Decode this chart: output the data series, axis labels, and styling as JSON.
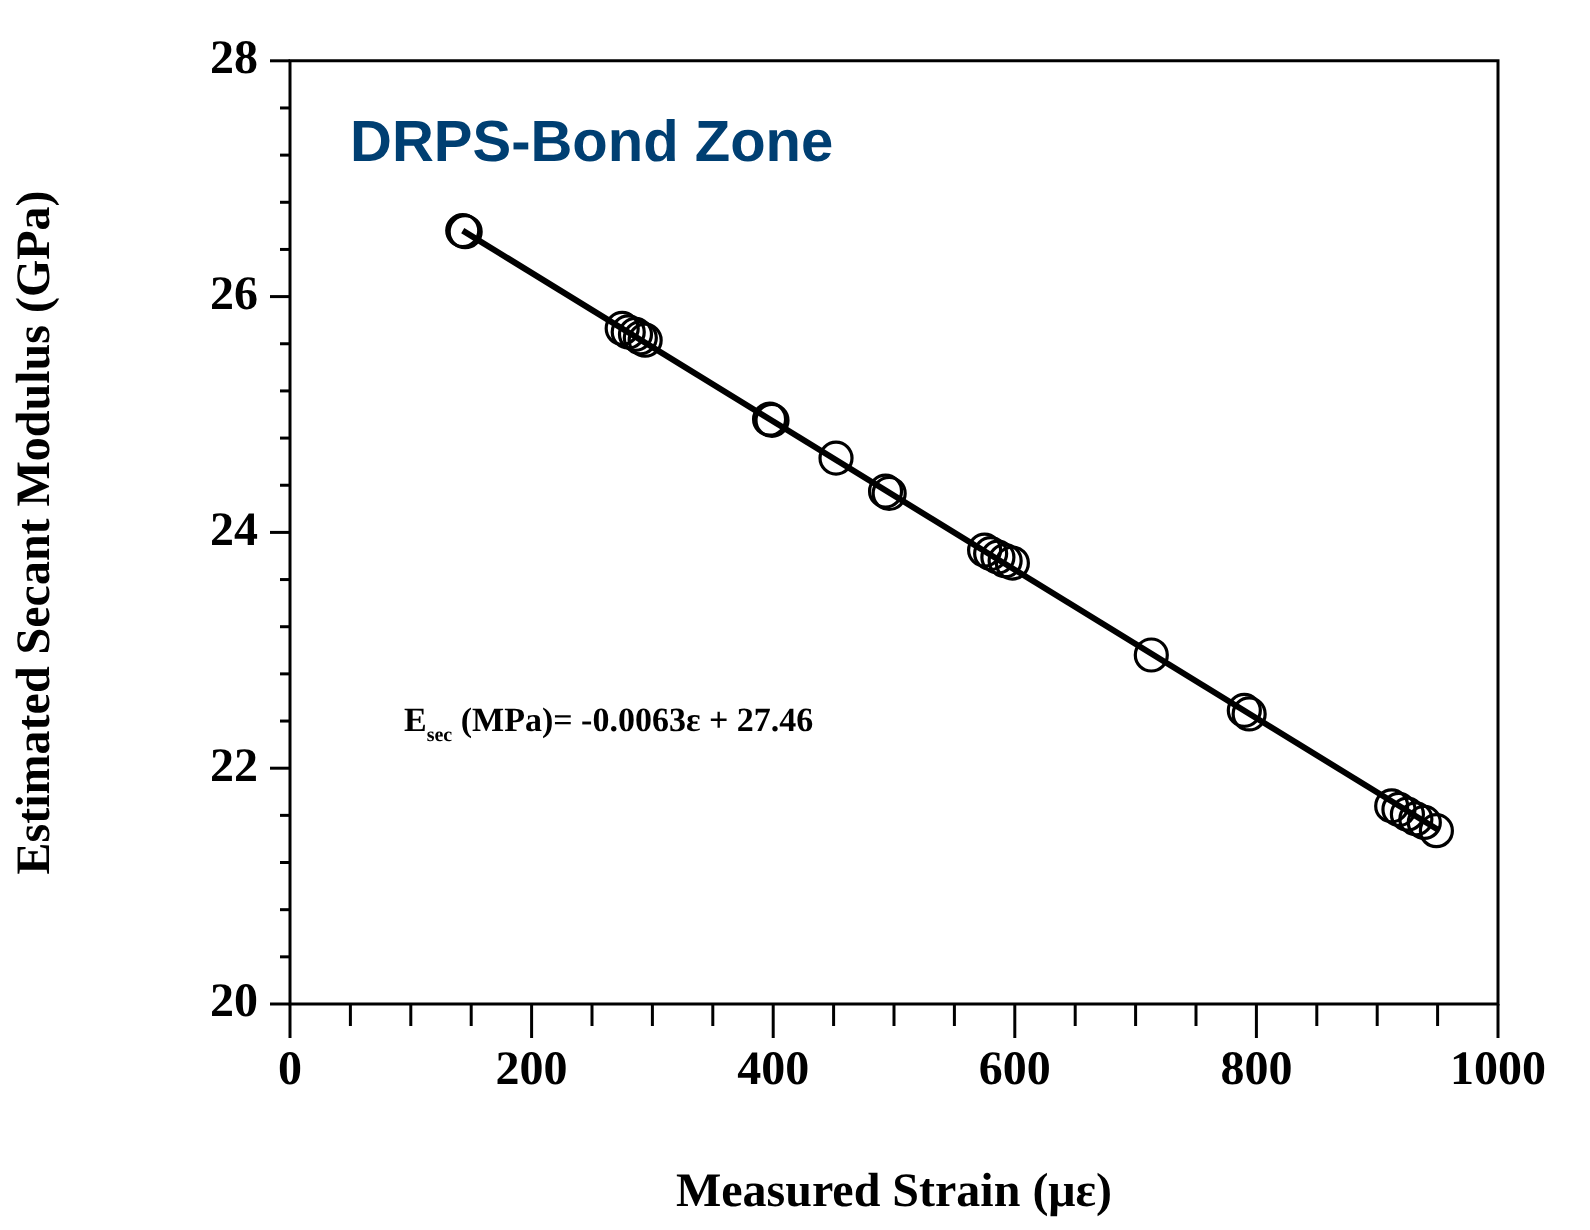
{
  "chart_data": {
    "type": "scatter",
    "title": "DRPS-Bond Zone",
    "xlabel": "Measured Strain (με)",
    "ylabel": "Estimated Secant Modulus (GPa)",
    "annotations": [
      "E$_{sec}$ (MPa)= -0.0063ε + 27.46"
    ],
    "grid": false,
    "legend": false,
    "xlim": [
      0,
      1000
    ],
    "ylim": [
      20,
      28
    ],
    "xticks": [
      0,
      {
        "value": 50,
        "label": null
      },
      {
        "value": 100,
        "label": null
      },
      {
        "value": 150,
        "label": null
      },
      200,
      {
        "value": 250,
        "label": null
      },
      {
        "value": 300,
        "label": null
      },
      {
        "value": 350,
        "label": null
      },
      400,
      {
        "value": 450,
        "label": null
      },
      {
        "value": 500,
        "label": null
      },
      {
        "value": 550,
        "label": null
      },
      600,
      {
        "value": 650,
        "label": null
      },
      {
        "value": 700,
        "label": null
      },
      {
        "value": 750,
        "label": null
      },
      800,
      {
        "value": 850,
        "label": null
      },
      {
        "value": 900,
        "label": null
      },
      {
        "value": 950,
        "label": null
      },
      1000
    ],
    "yticks": [
      20,
      {
        "value": 20.4,
        "label": null
      },
      {
        "value": 20.8,
        "label": null
      },
      {
        "value": 21.2,
        "label": null
      },
      {
        "value": 21.6,
        "label": null
      },
      22,
      {
        "value": 22.4,
        "label": null
      },
      {
        "value": 22.8,
        "label": null
      },
      {
        "value": 23.2,
        "label": null
      },
      {
        "value": 23.6,
        "label": null
      },
      24,
      {
        "value": 24.4,
        "label": null
      },
      {
        "value": 24.8,
        "label": null
      },
      {
        "value": 25.2,
        "label": null
      },
      {
        "value": 25.6,
        "label": null
      },
      26,
      {
        "value": 26.4,
        "label": null
      },
      {
        "value": 26.8,
        "label": null
      },
      {
        "value": 27.2,
        "label": null
      },
      {
        "value": 27.6,
        "label": null
      },
      28
    ],
    "series": [
      {
        "color": "#000000",
        "marker": "circle",
        "x": [
          143,
          145,
          275,
          280,
          286,
          290,
          294,
          397,
          399,
          401,
          452,
          493,
          496,
          575,
          580,
          586,
          592,
          598,
          713,
          790,
          792,
          794,
          912,
          918,
          925,
          932,
          939,
          949
        ],
        "values": [
          26.56,
          26.55,
          25.73,
          25.7,
          25.68,
          25.65,
          25.63,
          24.96,
          24.95,
          null,
          24.63,
          24.35,
          24.33,
          23.85,
          23.82,
          23.79,
          23.76,
          23.74,
          22.96,
          22.49,
          null,
          22.46,
          21.68,
          21.65,
          21.61,
          21.57,
          21.54,
          21.47
        ]
      },
      {
        "type": "line",
        "color": "#000000",
        "x": [
          143,
          950
        ],
        "values": [
          26.56,
          21.48
        ]
      }
    ]
  }
}
